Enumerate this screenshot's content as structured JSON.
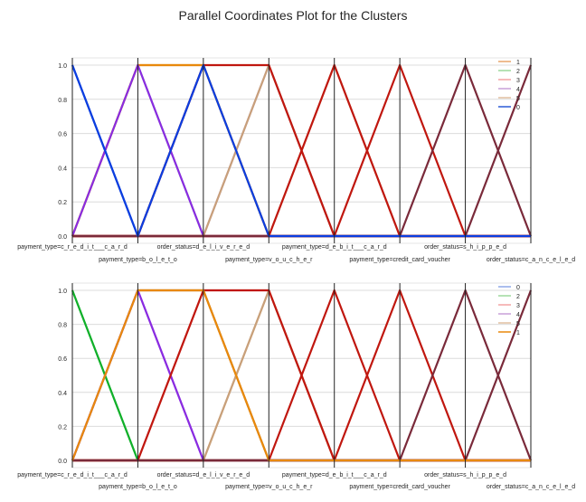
{
  "title": "Parallel Coordinates Plot for the Clusters",
  "chart_data": [
    {
      "type": "line",
      "subtype": "parallel-coordinates",
      "categories": [
        "payment_type=c_r_e_d_i_t___c_a_r_d",
        "payment_type=b_o_l_e_t_o",
        "order_status=d_e_l_i_v_e_r_e_d",
        "payment_type=v_o_u_c_h_e_r",
        "payment_type=d_e_b_i_t___c_a_r_d",
        "payment_type=credit_card_voucher",
        "order_status=s_h_i_p_p_e_d",
        "order_status=c_a_n_c_e_l_e_d"
      ],
      "ylim": [
        0,
        1
      ],
      "yticks": [
        "0.0",
        "0.2",
        "0.4",
        "0.6",
        "0.8",
        "1.0"
      ],
      "grid": true,
      "legend": "top-right",
      "series": [
        {
          "name": "1",
          "color": "#e8a66a",
          "values": [
            0,
            1,
            1,
            0,
            0,
            0,
            0,
            0
          ]
        },
        {
          "name": "2",
          "color": "#9ed89c",
          "values": [
            0,
            1,
            0,
            0,
            0,
            0,
            0,
            0
          ]
        },
        {
          "name": "3",
          "color": "#f2a3a3",
          "values": [
            0,
            0,
            1,
            0,
            0,
            0,
            0,
            0
          ]
        },
        {
          "name": "4",
          "color": "#c8a0d8",
          "values": [
            0,
            0,
            0,
            1,
            0,
            0,
            0,
            0
          ]
        },
        {
          "name": "5",
          "color": "#e0bfa0",
          "values": [
            0,
            0,
            0,
            0,
            1,
            0,
            0,
            0
          ]
        },
        {
          "name": "0",
          "color": "#2a5bd7",
          "values": [
            1,
            0,
            1,
            0,
            0,
            0,
            0,
            0
          ]
        },
        {
          "name": "",
          "color": "#e8890c",
          "values": [
            0,
            1,
            1,
            0,
            0,
            0,
            0,
            0
          ]
        },
        {
          "name": "",
          "color": "#8a2be2",
          "values": [
            0,
            1,
            0,
            0,
            0,
            0,
            0,
            0
          ]
        },
        {
          "name": "",
          "color": "#c8a07a",
          "values": [
            0,
            0,
            0,
            1,
            0,
            0,
            0,
            0
          ]
        },
        {
          "name": "",
          "color": "#c0170f",
          "values": [
            0,
            0,
            1,
            1,
            0,
            0,
            0,
            0
          ]
        },
        {
          "name": "",
          "color": "#c0170f",
          "values": [
            0,
            0,
            0,
            0,
            1,
            0,
            0,
            0
          ]
        },
        {
          "name": "",
          "color": "#c0170f",
          "values": [
            0,
            0,
            0,
            0,
            0,
            1,
            0,
            0
          ]
        },
        {
          "name": "",
          "color": "#7a2a3a",
          "values": [
            0,
            0,
            0,
            0,
            0,
            0,
            1,
            0
          ]
        },
        {
          "name": "",
          "color": "#7a2a3a",
          "values": [
            0,
            0,
            0,
            0,
            0,
            0,
            0,
            1
          ]
        },
        {
          "name": "",
          "color": "#0b3ee0",
          "values": [
            1,
            0,
            1,
            0,
            0,
            0,
            0,
            0
          ]
        }
      ]
    },
    {
      "type": "line",
      "subtype": "parallel-coordinates",
      "categories": [
        "payment_type=c_r_e_d_i_t___c_a_r_d",
        "payment_type=b_o_l_e_t_o",
        "order_status=d_e_l_i_v_e_r_e_d",
        "payment_type=v_o_u_c_h_e_r",
        "payment_type=d_e_b_i_t___c_a_r_d",
        "payment_type=credit_card_voucher",
        "order_status=s_h_i_p_p_e_d",
        "order_status=c_a_n_c_e_l_e_d"
      ],
      "ylim": [
        0,
        1
      ],
      "yticks": [
        "0.0",
        "0.2",
        "0.4",
        "0.6",
        "0.8",
        "1.0"
      ],
      "grid": true,
      "legend": "top-right",
      "series": [
        {
          "name": "0",
          "color": "#8fa8e8",
          "values": [
            0,
            1,
            1,
            0,
            0,
            0,
            0,
            0
          ]
        },
        {
          "name": "2",
          "color": "#9ed89c",
          "values": [
            1,
            0,
            0,
            0,
            0,
            0,
            0,
            0
          ]
        },
        {
          "name": "3",
          "color": "#f2a3a3",
          "values": [
            0,
            0,
            1,
            1,
            0,
            0,
            0,
            0
          ]
        },
        {
          "name": "4",
          "color": "#c8a0d8",
          "values": [
            0,
            1,
            0,
            0,
            0,
            0,
            0,
            0
          ]
        },
        {
          "name": "5",
          "color": "#e0bfa0",
          "values": [
            0,
            0,
            0,
            1,
            0,
            0,
            0,
            0
          ]
        },
        {
          "name": "1",
          "color": "#e8890c",
          "values": [
            0,
            1,
            1,
            0,
            0,
            0,
            0,
            0
          ]
        },
        {
          "name": "",
          "color": "#10b02a",
          "values": [
            1,
            0,
            0,
            0,
            0,
            0,
            0,
            0
          ]
        },
        {
          "name": "",
          "color": "#8a2be2",
          "values": [
            0,
            1,
            0,
            0,
            0,
            0,
            0,
            0
          ]
        },
        {
          "name": "",
          "color": "#c8a07a",
          "values": [
            0,
            0,
            0,
            1,
            0,
            0,
            0,
            0
          ]
        },
        {
          "name": "",
          "color": "#c0170f",
          "values": [
            0,
            0,
            1,
            1,
            0,
            0,
            0,
            0
          ]
        },
        {
          "name": "",
          "color": "#c0170f",
          "values": [
            0,
            0,
            0,
            0,
            1,
            0,
            0,
            0
          ]
        },
        {
          "name": "",
          "color": "#c0170f",
          "values": [
            0,
            0,
            0,
            0,
            0,
            1,
            0,
            0
          ]
        },
        {
          "name": "",
          "color": "#7a2a3a",
          "values": [
            0,
            0,
            0,
            0,
            0,
            0,
            1,
            0
          ]
        },
        {
          "name": "",
          "color": "#7a2a3a",
          "values": [
            0,
            0,
            0,
            0,
            0,
            0,
            0,
            1
          ]
        },
        {
          "name": "",
          "color": "#e8890c",
          "values": [
            0,
            1,
            1,
            0,
            0,
            0,
            0,
            0
          ]
        }
      ]
    }
  ]
}
